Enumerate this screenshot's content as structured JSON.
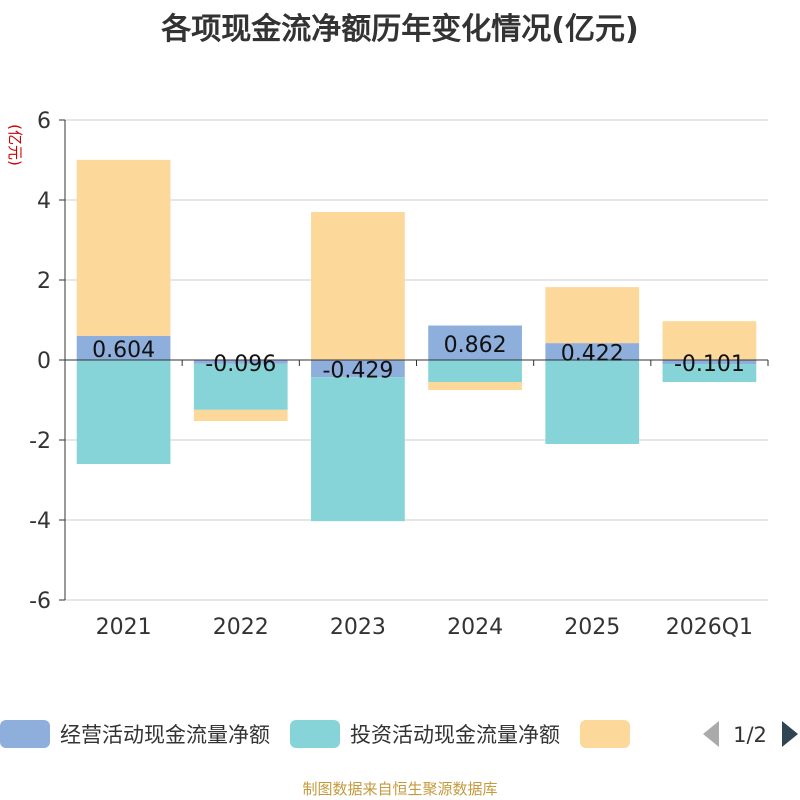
{
  "chart_data": {
    "type": "bar",
    "stacked": true,
    "title": "各项现金流净额历年变化情况(亿元)",
    "ylabel": "(亿元)",
    "xlabel": "",
    "ylim": [
      -6,
      6
    ],
    "yticks": [
      -6,
      -4,
      -2,
      0,
      2,
      4,
      6
    ],
    "grid": true,
    "categories": [
      "2021",
      "2022",
      "2023",
      "2024",
      "2025",
      "2026Q1"
    ],
    "series": [
      {
        "name": "经营活动现金流量净额",
        "color": "#8eaedc",
        "values": [
          0.604,
          -0.096,
          -0.429,
          0.862,
          0.422,
          -0.101
        ],
        "labels": [
          "0.604",
          "-0.096",
          "-0.429",
          "0.862",
          "0.422",
          "-0.101"
        ]
      },
      {
        "name": "投资活动现金流量净额",
        "color": "#87d4d8",
        "values": [
          -2.6,
          -1.15,
          -3.6,
          -0.55,
          -2.1,
          -0.45
        ],
        "labels": []
      },
      {
        "name": "",
        "color": "#fdd89b",
        "values": [
          4.4,
          -0.28,
          3.7,
          -0.2,
          1.4,
          0.97
        ],
        "labels": []
      }
    ],
    "legend": {
      "placement": "bottom",
      "page": "1/2"
    }
  },
  "source_text": "制图数据来自恒生聚源数据库"
}
